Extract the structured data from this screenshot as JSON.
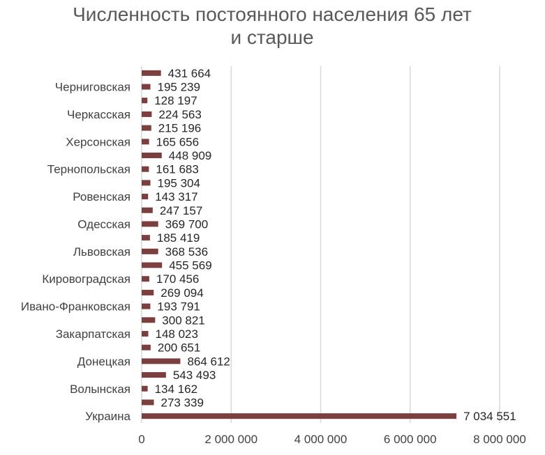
{
  "chart_data": {
    "type": "bar",
    "orientation": "horizontal",
    "title": "Численность постоянного населения 65 лет и старше",
    "title_lines": [
      "Численность постоянного населения 65 лет",
      "и старше"
    ],
    "categories": [
      "Украина",
      "",
      "Волынская",
      "",
      "Донецкая",
      "",
      "Закарпатская",
      "",
      "Ивано-Франковская",
      "",
      "Кировоградская",
      "",
      "Львовская",
      "",
      "Одесская",
      "",
      "Ровенская",
      "",
      "Тернопольская",
      "",
      "Херсонская",
      "",
      "Черкасская",
      "",
      "Черниговская",
      ""
    ],
    "values": [
      7034551,
      273339,
      134162,
      543493,
      864612,
      200651,
      148023,
      300821,
      193791,
      269094,
      170456,
      455569,
      368536,
      185419,
      369700,
      247157,
      143317,
      195304,
      161683,
      448909,
      165656,
      215196,
      224563,
      128197,
      195239,
      431664
    ],
    "data_labels": [
      "7 034 551",
      "273 339",
      "134 162",
      "543 493",
      "864 612",
      "200 651",
      "148 023",
      "300 821",
      "193 791",
      "269 094",
      "170 456",
      "455 569",
      "368 536",
      "185 419",
      "369 700",
      "247 157",
      "143 317",
      "195 304",
      "161 683",
      "448 909",
      "165 656",
      "215 196",
      "224 563",
      "128 197",
      "195 239",
      "431 664"
    ],
    "xlim": [
      0,
      8000000
    ],
    "xticks": [
      0,
      2000000,
      4000000,
      6000000,
      8000000
    ],
    "xtick_labels": [
      "0",
      "2 000 000",
      "4 000 000",
      "6 000 000",
      "8 000 000"
    ],
    "grid": true,
    "legend": "none",
    "colors": {
      "bar": "#7b3f3f"
    }
  }
}
